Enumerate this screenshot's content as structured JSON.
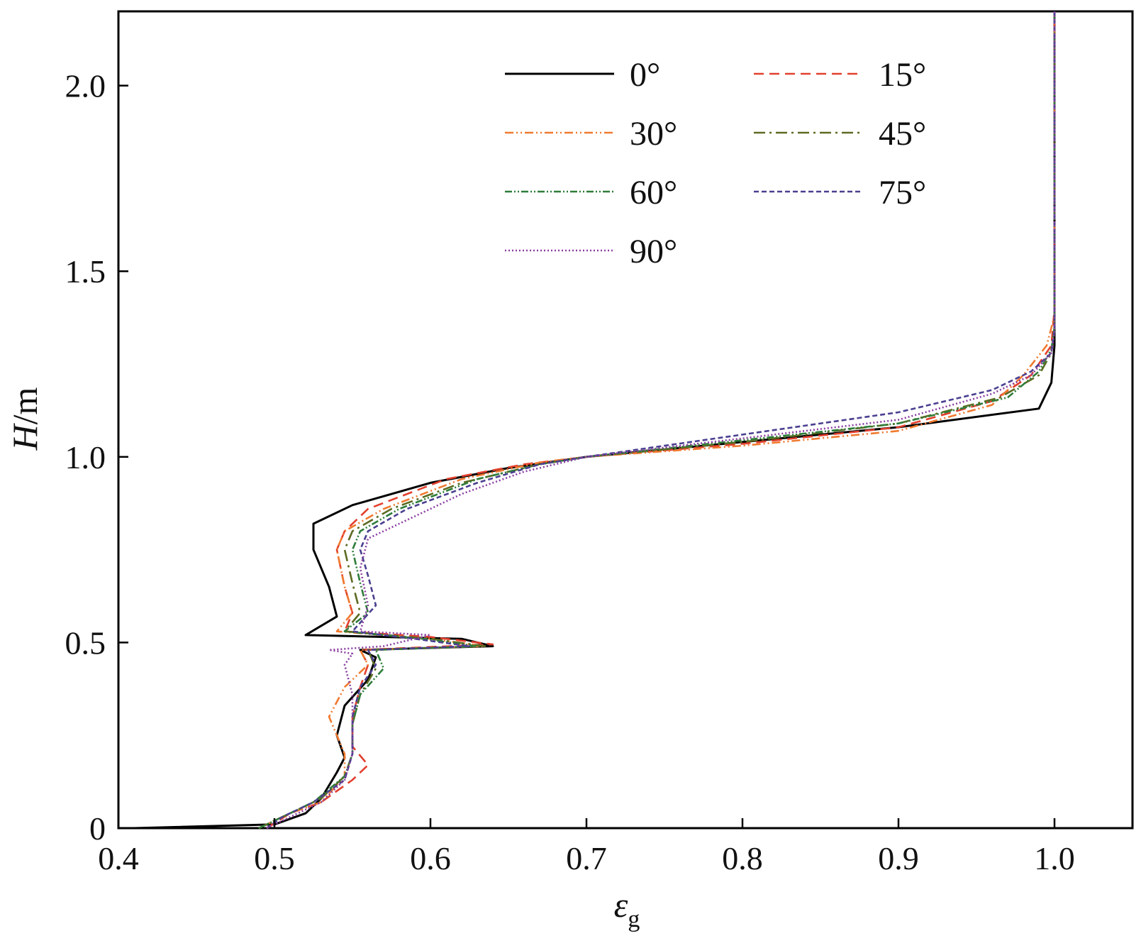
{
  "chart_data": {
    "type": "line",
    "xlabel": "ε",
    "xlabel_sub": "g",
    "ylabel_italic": "H",
    "ylabel_rest": "/m",
    "xlim": [
      0.4,
      1.05
    ],
    "ylim": [
      0,
      2.2
    ],
    "x_ticks": [
      0.4,
      0.5,
      0.6,
      0.7,
      0.8,
      0.9,
      1.0
    ],
    "x_tick_labels": [
      "0.4",
      "0.5",
      "0.6",
      "0.7",
      "0.8",
      "0.9",
      "1.0"
    ],
    "y_ticks": [
      0,
      0.5,
      1.0,
      1.5,
      2.0
    ],
    "y_tick_labels": [
      "0",
      "0.5",
      "1.0",
      "1.5",
      "2.0"
    ],
    "grid": false,
    "legend_position": "top-right",
    "series": [
      {
        "name": "0°",
        "color": "#000000",
        "dash": "",
        "points": [
          [
            0.41,
            0.0
          ],
          [
            0.5,
            0.01
          ],
          [
            0.52,
            0.04
          ],
          [
            0.53,
            0.08
          ],
          [
            0.54,
            0.15
          ],
          [
            0.545,
            0.19
          ],
          [
            0.54,
            0.25
          ],
          [
            0.545,
            0.33
          ],
          [
            0.56,
            0.4
          ],
          [
            0.565,
            0.46
          ],
          [
            0.555,
            0.48
          ],
          [
            0.64,
            0.49
          ],
          [
            0.62,
            0.51
          ],
          [
            0.52,
            0.52
          ],
          [
            0.54,
            0.57
          ],
          [
            0.535,
            0.65
          ],
          [
            0.525,
            0.75
          ],
          [
            0.525,
            0.82
          ],
          [
            0.55,
            0.87
          ],
          [
            0.6,
            0.93
          ],
          [
            0.65,
            0.97
          ],
          [
            0.7,
            1.0
          ],
          [
            0.8,
            1.04
          ],
          [
            0.9,
            1.08
          ],
          [
            0.99,
            1.13
          ],
          [
            0.998,
            1.2
          ],
          [
            1.0,
            1.3
          ],
          [
            1.0,
            1.6
          ],
          [
            1.0,
            2.2
          ]
        ]
      },
      {
        "name": "15°",
        "color": "#e2402e",
        "dash": "14,8",
        "points": [
          [
            0.495,
            0.0
          ],
          [
            0.51,
            0.04
          ],
          [
            0.53,
            0.07
          ],
          [
            0.55,
            0.13
          ],
          [
            0.56,
            0.17
          ],
          [
            0.55,
            0.22
          ],
          [
            0.55,
            0.3
          ],
          [
            0.555,
            0.38
          ],
          [
            0.56,
            0.44
          ],
          [
            0.555,
            0.48
          ],
          [
            0.64,
            0.495
          ],
          [
            0.6,
            0.515
          ],
          [
            0.545,
            0.53
          ],
          [
            0.55,
            0.58
          ],
          [
            0.545,
            0.65
          ],
          [
            0.54,
            0.75
          ],
          [
            0.545,
            0.8
          ],
          [
            0.56,
            0.86
          ],
          [
            0.61,
            0.94
          ],
          [
            0.66,
            0.98
          ],
          [
            0.7,
            1.0
          ],
          [
            0.8,
            1.035
          ],
          [
            0.9,
            1.08
          ],
          [
            0.96,
            1.15
          ],
          [
            0.985,
            1.22
          ],
          [
            0.998,
            1.3
          ],
          [
            1.0,
            1.4
          ],
          [
            1.0,
            2.2
          ]
        ]
      },
      {
        "name": "30°",
        "color": "#f07a30",
        "dash": "12,4,2,4,2,4",
        "points": [
          [
            0.49,
            0.0
          ],
          [
            0.51,
            0.04
          ],
          [
            0.53,
            0.07
          ],
          [
            0.545,
            0.14
          ],
          [
            0.545,
            0.2
          ],
          [
            0.535,
            0.3
          ],
          [
            0.545,
            0.38
          ],
          [
            0.56,
            0.44
          ],
          [
            0.555,
            0.48
          ],
          [
            0.635,
            0.49
          ],
          [
            0.6,
            0.51
          ],
          [
            0.54,
            0.53
          ],
          [
            0.55,
            0.58
          ],
          [
            0.545,
            0.65
          ],
          [
            0.54,
            0.75
          ],
          [
            0.545,
            0.8
          ],
          [
            0.57,
            0.86
          ],
          [
            0.62,
            0.94
          ],
          [
            0.67,
            0.985
          ],
          [
            0.7,
            1.0
          ],
          [
            0.8,
            1.03
          ],
          [
            0.9,
            1.07
          ],
          [
            0.96,
            1.14
          ],
          [
            0.98,
            1.22
          ],
          [
            0.995,
            1.3
          ],
          [
            1.0,
            1.38
          ],
          [
            1.0,
            2.2
          ]
        ]
      },
      {
        "name": "45°",
        "color": "#5c6b22",
        "dash": "16,6,3,6",
        "points": [
          [
            0.49,
            0.0
          ],
          [
            0.51,
            0.04
          ],
          [
            0.53,
            0.08
          ],
          [
            0.545,
            0.14
          ],
          [
            0.55,
            0.2
          ],
          [
            0.55,
            0.28
          ],
          [
            0.555,
            0.36
          ],
          [
            0.565,
            0.43
          ],
          [
            0.56,
            0.48
          ],
          [
            0.635,
            0.49
          ],
          [
            0.6,
            0.51
          ],
          [
            0.545,
            0.53
          ],
          [
            0.555,
            0.58
          ],
          [
            0.55,
            0.66
          ],
          [
            0.545,
            0.75
          ],
          [
            0.55,
            0.8
          ],
          [
            0.575,
            0.86
          ],
          [
            0.62,
            0.93
          ],
          [
            0.67,
            0.98
          ],
          [
            0.7,
            1.0
          ],
          [
            0.8,
            1.04
          ],
          [
            0.9,
            1.09
          ],
          [
            0.965,
            1.16
          ],
          [
            0.99,
            1.22
          ],
          [
            0.998,
            1.28
          ],
          [
            1.0,
            1.35
          ],
          [
            1.0,
            2.2
          ]
        ]
      },
      {
        "name": "60°",
        "color": "#2f7d3a",
        "dash": "10,3,2,3,2,3",
        "points": [
          [
            0.49,
            0.0
          ],
          [
            0.505,
            0.03
          ],
          [
            0.525,
            0.07
          ],
          [
            0.545,
            0.14
          ],
          [
            0.55,
            0.2
          ],
          [
            0.55,
            0.28
          ],
          [
            0.555,
            0.36
          ],
          [
            0.57,
            0.43
          ],
          [
            0.565,
            0.48
          ],
          [
            0.63,
            0.49
          ],
          [
            0.595,
            0.51
          ],
          [
            0.545,
            0.53
          ],
          [
            0.56,
            0.58
          ],
          [
            0.555,
            0.66
          ],
          [
            0.55,
            0.75
          ],
          [
            0.555,
            0.8
          ],
          [
            0.58,
            0.86
          ],
          [
            0.63,
            0.94
          ],
          [
            0.67,
            0.98
          ],
          [
            0.7,
            1.0
          ],
          [
            0.8,
            1.045
          ],
          [
            0.9,
            1.09
          ],
          [
            0.97,
            1.16
          ],
          [
            0.99,
            1.23
          ],
          [
            0.998,
            1.29
          ],
          [
            1.0,
            1.35
          ],
          [
            1.0,
            2.2
          ]
        ]
      },
      {
        "name": "75°",
        "color": "#4a4090",
        "dash": "7,4",
        "points": [
          [
            0.495,
            0.0
          ],
          [
            0.505,
            0.03
          ],
          [
            0.525,
            0.07
          ],
          [
            0.545,
            0.13
          ],
          [
            0.55,
            0.2
          ],
          [
            0.55,
            0.3
          ],
          [
            0.555,
            0.38
          ],
          [
            0.565,
            0.44
          ],
          [
            0.56,
            0.48
          ],
          [
            0.625,
            0.49
          ],
          [
            0.59,
            0.51
          ],
          [
            0.55,
            0.53
          ],
          [
            0.565,
            0.6
          ],
          [
            0.56,
            0.68
          ],
          [
            0.555,
            0.75
          ],
          [
            0.56,
            0.8
          ],
          [
            0.585,
            0.86
          ],
          [
            0.63,
            0.93
          ],
          [
            0.67,
            0.98
          ],
          [
            0.7,
            1.0
          ],
          [
            0.8,
            1.06
          ],
          [
            0.9,
            1.12
          ],
          [
            0.96,
            1.18
          ],
          [
            0.985,
            1.23
          ],
          [
            0.998,
            1.28
          ],
          [
            1.0,
            1.34
          ],
          [
            1.0,
            2.2
          ]
        ]
      },
      {
        "name": "90°",
        "color": "#8a3fa0",
        "dash": "2,3",
        "points": [
          [
            0.495,
            0.0
          ],
          [
            0.51,
            0.03
          ],
          [
            0.53,
            0.07
          ],
          [
            0.545,
            0.13
          ],
          [
            0.55,
            0.2
          ],
          [
            0.55,
            0.28
          ],
          [
            0.55,
            0.36
          ],
          [
            0.545,
            0.44
          ],
          [
            0.55,
            0.47
          ],
          [
            0.535,
            0.48
          ],
          [
            0.57,
            0.49
          ],
          [
            0.6,
            0.52
          ],
          [
            0.555,
            0.53
          ],
          [
            0.56,
            0.6
          ],
          [
            0.555,
            0.7
          ],
          [
            0.56,
            0.78
          ],
          [
            0.58,
            0.82
          ],
          [
            0.62,
            0.9
          ],
          [
            0.66,
            0.96
          ],
          [
            0.7,
            1.0
          ],
          [
            0.8,
            1.05
          ],
          [
            0.9,
            1.1
          ],
          [
            0.96,
            1.17
          ],
          [
            0.985,
            1.22
          ],
          [
            0.998,
            1.28
          ],
          [
            1.0,
            1.34
          ],
          [
            1.0,
            2.2
          ]
        ]
      }
    ]
  }
}
